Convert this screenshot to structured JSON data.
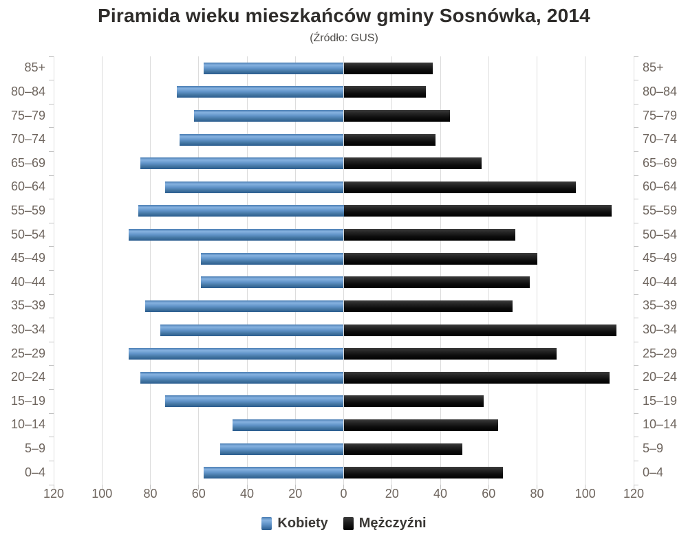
{
  "chart_data": {
    "type": "bar",
    "variant": "population-pyramid",
    "title": "Piramida wieku mieszkańców gminy Sosnówka, 2014",
    "subtitle": "(Źródło: GUS)",
    "categories": [
      "85+",
      "80–84",
      "75–79",
      "70–74",
      "65–69",
      "60–64",
      "55–59",
      "50–54",
      "45–49",
      "40–44",
      "35–39",
      "30–34",
      "25–29",
      "20–24",
      "15–19",
      "10–14",
      "5–9",
      "0–4"
    ],
    "series": [
      {
        "name": "Kobiety",
        "side": "left",
        "color": "#5b8fc6",
        "values": [
          58,
          69,
          62,
          68,
          84,
          74,
          85,
          89,
          59,
          59,
          82,
          76,
          89,
          84,
          74,
          46,
          51,
          58
        ]
      },
      {
        "name": "Mężczyźni",
        "side": "right",
        "color": "#111111",
        "values": [
          37,
          34,
          44,
          38,
          57,
          96,
          111,
          71,
          80,
          77,
          70,
          113,
          88,
          110,
          58,
          64,
          49,
          66
        ]
      }
    ],
    "x_axis": {
      "max_each_side": 120,
      "tick_interval": 20,
      "ticks_display": [
        "120",
        "100",
        "80",
        "60",
        "40",
        "20",
        "0",
        "20",
        "40",
        "60",
        "80",
        "100",
        "120"
      ],
      "gridlines": true
    },
    "legend": {
      "position": "bottom",
      "entries": [
        "Kobiety",
        "Mężczyźni"
      ]
    }
  },
  "colors": {
    "background": "#ffffff",
    "grid": "#dcdcdc",
    "axis_tick": "#c2c2c2",
    "axis_label": "#6e655e",
    "title_text": "#2e2c2a",
    "subtitle_text": "#4d4b48",
    "legend_text": "#3a3835",
    "female_bar": "#5b8fc6",
    "male_bar": "#111111"
  }
}
